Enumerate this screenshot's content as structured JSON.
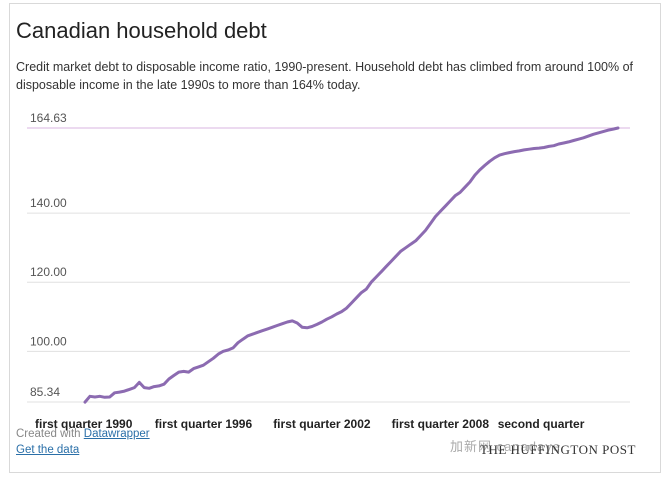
{
  "chart_title": "Canadian household debt",
  "subtitle": "Credit market debt to disposable income ratio, 1990-present. Household debt has climbed from around 100% of disposable income in the late 1990s to more than 164% today.",
  "credit_prefix": "Created with ",
  "credit_link": "Datawrapper",
  "get_data": "Get the data",
  "watermark": "加新网 canadaye",
  "brand": "THE HUFFINGTON POST",
  "colors": {
    "line": "#8c6bb1",
    "grid": "#e0e0e0",
    "topline": "#d8b4e2"
  },
  "chart_data": {
    "type": "line",
    "title": "Canadian household debt",
    "xlabel": "",
    "ylabel": "",
    "ylim": [
      85.34,
      164.63
    ],
    "y_ticks": [
      {
        "value": 164.63,
        "label": "164.63"
      },
      {
        "value": 140,
        "label": "140.00"
      },
      {
        "value": 120,
        "label": "120.00"
      },
      {
        "value": 100,
        "label": "100.00"
      },
      {
        "value": 85.34,
        "label": "85.34"
      }
    ],
    "x_ticks": [
      {
        "index": 0,
        "label": "first quarter 1990"
      },
      {
        "index": 24,
        "label": "first quarter 1996"
      },
      {
        "index": 48,
        "label": "first quarter 2002"
      },
      {
        "index": 72,
        "label": "first quarter 2008"
      },
      {
        "index": 97,
        "label": "second quarter"
      }
    ],
    "series": [
      {
        "values": [
          85.3,
          87.0,
          86.8,
          87.0,
          86.7,
          86.8,
          88.0,
          88.2,
          88.5,
          89.0,
          89.5,
          91.0,
          89.5,
          89.3,
          89.8,
          90.0,
          90.5,
          92.0,
          93.0,
          94.0,
          94.2,
          94.0,
          95.0,
          95.5,
          96.0,
          97.0,
          98.0,
          99.2,
          100.0,
          100.4,
          101.0,
          102.5,
          103.5,
          104.5,
          105.0,
          105.5,
          106.0,
          106.5,
          107.0,
          107.5,
          108.0,
          108.5,
          108.8,
          108.2,
          107.0,
          106.8,
          107.2,
          107.8,
          108.5,
          109.3,
          110.0,
          110.8,
          111.5,
          112.5,
          114.0,
          115.5,
          117.0,
          118.0,
          120.0,
          121.5,
          123.0,
          124.5,
          126.0,
          127.5,
          129.0,
          130.0,
          131.0,
          132.0,
          133.5,
          135.0,
          137.0,
          139.0,
          140.5,
          142.0,
          143.5,
          145.0,
          146.0,
          147.5,
          149.0,
          151.0,
          152.5,
          153.8,
          155.0,
          156.0,
          156.8,
          157.2,
          157.5,
          157.8,
          158.0,
          158.3,
          158.5,
          158.7,
          158.8,
          159.0,
          159.3,
          159.5,
          160.0,
          160.3,
          160.6,
          161.0,
          161.4,
          161.8,
          162.3,
          162.8,
          163.2,
          163.6,
          164.0,
          164.3,
          164.63
        ],
        "color": "#8c6bb1"
      }
    ],
    "grid": true,
    "legend": "none"
  }
}
